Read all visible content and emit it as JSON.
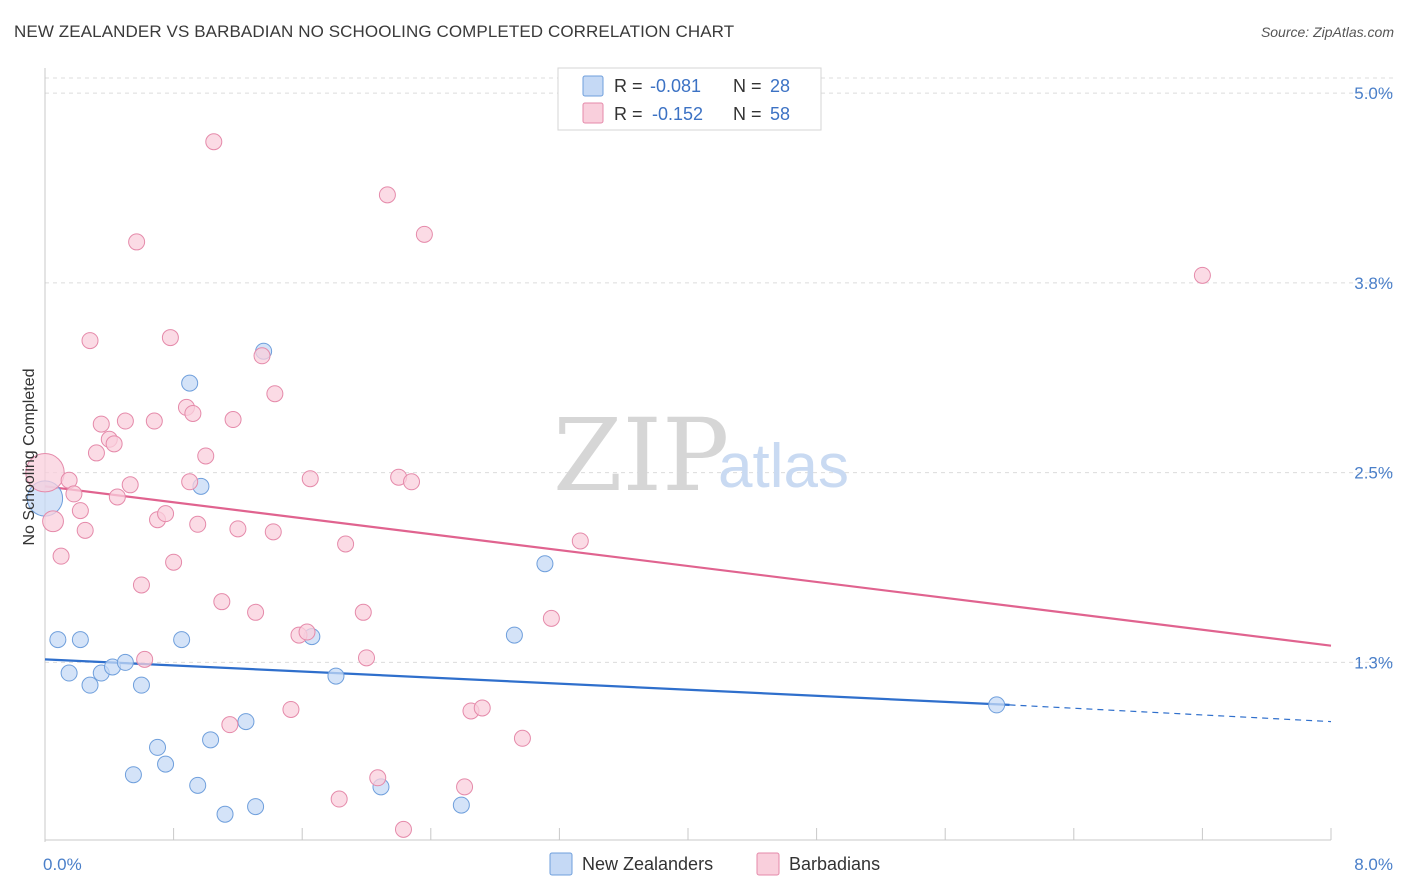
{
  "title": "NEW ZEALANDER VS BARBADIAN NO SCHOOLING COMPLETED CORRELATION CHART",
  "source": "Source: ZipAtlas.com",
  "watermark": {
    "zip": "ZIP",
    "atlas": "atlas"
  },
  "colors": {
    "blue_fill": "#c5d9f5",
    "blue_stroke": "#6f9fdc",
    "blue_line": "#2f6fcc",
    "pink_fill": "#f9cfdc",
    "pink_stroke": "#e58aaa",
    "pink_line": "#e0638f",
    "grid": "#dcdcdc",
    "axis_text": "#4a7fc9"
  },
  "legend": {
    "r_label": "R =",
    "n_label": "N =",
    "rows": [
      {
        "series": "New Zealanders",
        "r": "-0.081",
        "n": "28"
      },
      {
        "series": "Barbadians",
        "r": "-0.152",
        "n": "58"
      }
    ]
  },
  "chart_data": {
    "type": "scatter",
    "title": "NEW ZEALANDER VS BARBADIAN NO SCHOOLING COMPLETED CORRELATION CHART",
    "xlabel": "",
    "ylabel": "No Schooling Completed",
    "xlim": [
      0,
      8
    ],
    "ylim": [
      0.08,
      5.1
    ],
    "x_tick_labels": [
      "0.0%",
      "8.0%"
    ],
    "y_ticks": [
      1.25,
      2.5,
      3.75,
      5.0
    ],
    "y_tick_labels": [
      "1.3%",
      "2.5%",
      "3.8%",
      "5.0%"
    ],
    "grid": true,
    "legend_position": "top-center",
    "series": [
      {
        "name": "New Zealanders",
        "color": "blue",
        "trend": {
          "x0": 0.0,
          "y0": 1.27,
          "x1": 6.0,
          "y1": 0.97,
          "dash_to_x": 8.0,
          "dash_to_y": 0.86
        },
        "points": [
          [
            0.0,
            2.33,
            2.2
          ],
          [
            0.08,
            1.4,
            1.0
          ],
          [
            0.22,
            1.4,
            1.0
          ],
          [
            0.15,
            1.18,
            1.0
          ],
          [
            0.28,
            1.1,
            1.0
          ],
          [
            0.35,
            1.18,
            1.0
          ],
          [
            0.42,
            1.22,
            1.0
          ],
          [
            0.5,
            1.25,
            1.0
          ],
          [
            0.6,
            1.1,
            1.0
          ],
          [
            0.7,
            0.69,
            1.0
          ],
          [
            0.75,
            0.58,
            1.0
          ],
          [
            0.55,
            0.51,
            1.0
          ],
          [
            0.85,
            1.4,
            1.0
          ],
          [
            0.9,
            3.09,
            1.0
          ],
          [
            0.95,
            0.44,
            1.0
          ],
          [
            0.97,
            2.41,
            1.0
          ],
          [
            1.03,
            0.74,
            1.0
          ],
          [
            1.12,
            0.25,
            1.0
          ],
          [
            1.25,
            0.86,
            1.0
          ],
          [
            1.31,
            0.3,
            1.0
          ],
          [
            1.36,
            3.3,
            1.0
          ],
          [
            1.66,
            1.42,
            1.0
          ],
          [
            1.81,
            1.16,
            1.0
          ],
          [
            2.09,
            0.43,
            1.0
          ],
          [
            2.59,
            0.31,
            1.0
          ],
          [
            2.92,
            1.43,
            1.0
          ],
          [
            3.11,
            1.9,
            1.0
          ],
          [
            5.92,
            0.97,
            1.0
          ]
        ]
      },
      {
        "name": "Barbadians",
        "color": "pink",
        "trend": {
          "x0": 0.0,
          "y0": 2.41,
          "x1": 8.0,
          "y1": 1.36
        },
        "points": [
          [
            0.0,
            2.5,
            2.4
          ],
          [
            0.05,
            2.18,
            1.3
          ],
          [
            0.1,
            1.95,
            1.0
          ],
          [
            0.15,
            2.45,
            1.0
          ],
          [
            0.18,
            2.36,
            1.0
          ],
          [
            0.22,
            2.25,
            1.0
          ],
          [
            0.25,
            2.12,
            1.0
          ],
          [
            0.28,
            3.37,
            1.0
          ],
          [
            0.32,
            2.63,
            1.0
          ],
          [
            0.35,
            2.82,
            1.0
          ],
          [
            0.4,
            2.72,
            1.0
          ],
          [
            0.43,
            2.69,
            1.0
          ],
          [
            0.45,
            2.34,
            1.0
          ],
          [
            0.5,
            2.84,
            1.0
          ],
          [
            0.53,
            2.42,
            1.0
          ],
          [
            0.57,
            4.02,
            1.0
          ],
          [
            0.6,
            1.76,
            1.0
          ],
          [
            0.62,
            1.27,
            1.0
          ],
          [
            0.68,
            2.84,
            1.0
          ],
          [
            0.7,
            2.19,
            1.0
          ],
          [
            0.75,
            2.23,
            1.0
          ],
          [
            0.78,
            3.39,
            1.0
          ],
          [
            0.8,
            1.91,
            1.0
          ],
          [
            0.88,
            2.93,
            1.0
          ],
          [
            0.9,
            2.44,
            1.0
          ],
          [
            0.92,
            2.89,
            1.0
          ],
          [
            0.95,
            2.16,
            1.0
          ],
          [
            1.0,
            2.61,
            1.0
          ],
          [
            1.05,
            4.68,
            1.0
          ],
          [
            1.1,
            1.65,
            1.0
          ],
          [
            1.15,
            0.84,
            1.0
          ],
          [
            1.17,
            2.85,
            1.0
          ],
          [
            1.2,
            2.13,
            1.0
          ],
          [
            1.31,
            1.58,
            1.0
          ],
          [
            1.35,
            3.27,
            1.0
          ],
          [
            1.42,
            2.11,
            1.0
          ],
          [
            1.43,
            3.02,
            1.0
          ],
          [
            1.53,
            0.94,
            1.0
          ],
          [
            1.58,
            1.43,
            1.0
          ],
          [
            1.63,
            1.45,
            1.0
          ],
          [
            1.65,
            2.46,
            1.0
          ],
          [
            1.83,
            0.35,
            1.0
          ],
          [
            1.87,
            2.03,
            1.0
          ],
          [
            1.98,
            1.58,
            1.0
          ],
          [
            2.0,
            1.28,
            1.0
          ],
          [
            2.07,
            0.49,
            1.0
          ],
          [
            2.13,
            4.33,
            1.0
          ],
          [
            2.2,
            2.47,
            1.0
          ],
          [
            2.23,
            0.15,
            1.0
          ],
          [
            2.28,
            2.44,
            1.0
          ],
          [
            2.36,
            4.07,
            1.0
          ],
          [
            2.61,
            0.43,
            1.0
          ],
          [
            2.65,
            0.93,
            1.0
          ],
          [
            2.72,
            0.95,
            1.0
          ],
          [
            2.97,
            0.75,
            1.0
          ],
          [
            3.15,
            1.54,
            1.0
          ],
          [
            3.33,
            2.05,
            1.0
          ],
          [
            7.2,
            3.8,
            1.0
          ]
        ]
      }
    ]
  }
}
